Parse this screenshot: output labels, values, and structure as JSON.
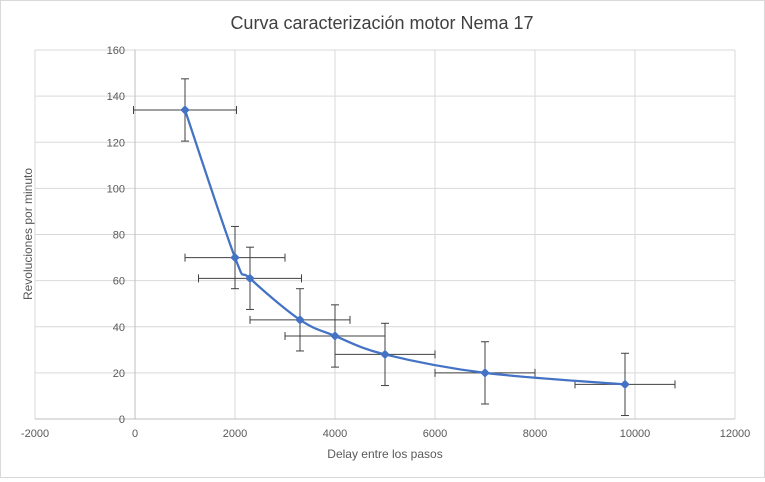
{
  "chart_data": {
    "type": "scatter",
    "title": "Curva caracterización motor Nema 17",
    "xlabel": "Delay entre  los pasos",
    "ylabel": "Revoluciones por minuto",
    "xlim": [
      -2000,
      12000
    ],
    "ylim": [
      0,
      160
    ],
    "x_ticks": [
      -2000,
      0,
      2000,
      4000,
      6000,
      8000,
      10000,
      12000
    ],
    "y_ticks": [
      0,
      20,
      40,
      60,
      80,
      100,
      120,
      140,
      160
    ],
    "grid": true,
    "legend": "none",
    "smooth_line": true,
    "series_color": "#4472c4",
    "error_bar_color": "#404040",
    "series": [
      {
        "points": [
          {
            "x": 1000,
            "y": 134,
            "x_err": 1030,
            "y_err": 13.5
          },
          {
            "x": 2000,
            "y": 70,
            "x_err": 1000,
            "y_err": 13.5
          },
          {
            "x": 2300,
            "y": 61,
            "x_err": 1030,
            "y_err": 13.5
          },
          {
            "x": 3300,
            "y": 43,
            "x_err": 1000,
            "y_err": 13.5
          },
          {
            "x": 4000,
            "y": 36,
            "x_err": 1000,
            "y_err": 13.5
          },
          {
            "x": 5000,
            "y": 28,
            "x_err": 1000,
            "y_err": 13.5
          },
          {
            "x": 7000,
            "y": 20,
            "x_err": 1000,
            "y_err": 13.5
          },
          {
            "x": 9800,
            "y": 15,
            "x_err": 1000,
            "y_err": 13.5
          }
        ]
      }
    ]
  }
}
